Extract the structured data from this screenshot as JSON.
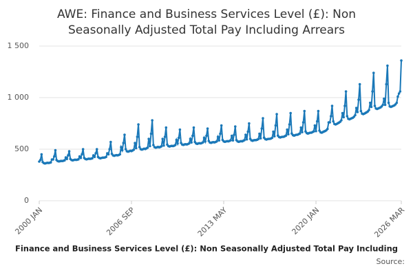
{
  "chart_data": {
    "type": "line",
    "title": [
      "AWE: Finance and Business Services Level (£): Non",
      "Seasonally Adjusted Total Pay Including Arrears"
    ],
    "categories": [
      "2000 JAN",
      null,
      null,
      null,
      null,
      null,
      null,
      null,
      null,
      null,
      null,
      null,
      null,
      null,
      null,
      null,
      null,
      null,
      null,
      null,
      null,
      null,
      null,
      null,
      null,
      null,
      null,
      null,
      null,
      null,
      null,
      null,
      null,
      null,
      null,
      null,
      null,
      null,
      null,
      null,
      null,
      null,
      null,
      null,
      null,
      null,
      null,
      null,
      null,
      null,
      null,
      null,
      null,
      null,
      null,
      null,
      null,
      null,
      null,
      null,
      null,
      null,
      null,
      null,
      null,
      null,
      null,
      null,
      null,
      null,
      null,
      null,
      null,
      null,
      null,
      null,
      null,
      null,
      null,
      null,
      "2006 SEP",
      null,
      null,
      null,
      null,
      null,
      null,
      null,
      null,
      null,
      null,
      null,
      null,
      null,
      null,
      null,
      null,
      null,
      null,
      null,
      null,
      null,
      null,
      null,
      null,
      null,
      null,
      null,
      null,
      null,
      null,
      null,
      null,
      null,
      null,
      null,
      null,
      null,
      null,
      null,
      null,
      null,
      null,
      null,
      null,
      null,
      null,
      null,
      null,
      null,
      null,
      null,
      null,
      null,
      null,
      null,
      null,
      null,
      null,
      null,
      null,
      null,
      null,
      null,
      null,
      null,
      null,
      null,
      null,
      null,
      null,
      null,
      null,
      null,
      null,
      null,
      null,
      null,
      null,
      null,
      "2013 MAY",
      null,
      null,
      null,
      null,
      null,
      null,
      null,
      null,
      null,
      null,
      null,
      null,
      null,
      null,
      null,
      null,
      null,
      null,
      null,
      null,
      null,
      null,
      null,
      null,
      null,
      null,
      null,
      null,
      null,
      null,
      null,
      null,
      null,
      null,
      null,
      null,
      null,
      null,
      null,
      null,
      null,
      null,
      null,
      null,
      null,
      null,
      null,
      null,
      null,
      null,
      null,
      null,
      null,
      null,
      null,
      null,
      null,
      null,
      null,
      null,
      null,
      null,
      null,
      null,
      null,
      null,
      null,
      null,
      null,
      null,
      null,
      null,
      null,
      null,
      null,
      null,
      null,
      null,
      null,
      "2020 JAN",
      null,
      null,
      null,
      null,
      null,
      null,
      null,
      null,
      null,
      null,
      null,
      null,
      null,
      null,
      null,
      null,
      null,
      null,
      null,
      null,
      null,
      null,
      null,
      null,
      null,
      null,
      null,
      null,
      null,
      null,
      null,
      null,
      null,
      null,
      null,
      null,
      null,
      null,
      null,
      null,
      null,
      null,
      null,
      null,
      null,
      null,
      null,
      null,
      null,
      null,
      null,
      null,
      null,
      null,
      null,
      null,
      null,
      null,
      null,
      null,
      null,
      null,
      null,
      null,
      null,
      null,
      null,
      null,
      null,
      null,
      null,
      null,
      null,
      "2026 MAR"
    ],
    "series": [
      {
        "name": "Finance and Business Services Level (£): Non Seasonally Adjusted Total Pay Including",
        "color": "#1a78b8",
        "values": [
          380,
          395,
          450,
          375,
          365,
          362,
          365,
          368,
          366,
          368,
          372,
          400,
          400,
          430,
          490,
          395,
          385,
          382,
          384,
          386,
          385,
          388,
          392,
          420,
          405,
          440,
          480,
          405,
          395,
          392,
          395,
          398,
          396,
          398,
          402,
          430,
          415,
          450,
          500,
          415,
          405,
          402,
          405,
          408,
          406,
          408,
          412,
          440,
          425,
          460,
          500,
          425,
          415,
          412,
          415,
          418,
          418,
          420,
          425,
          460,
          450,
          500,
          570,
          455,
          440,
          436,
          440,
          442,
          440,
          444,
          450,
          520,
          490,
          560,
          640,
          500,
          480,
          476,
          480,
          485,
          482,
          488,
          495,
          560,
          510,
          620,
          740,
          520,
          500,
          496,
          500,
          505,
          502,
          508,
          515,
          600,
          530,
          650,
          780,
          540,
          520,
          515,
          518,
          522,
          518,
          522,
          528,
          600,
          535,
          620,
          710,
          545,
          530,
          526,
          530,
          532,
          530,
          534,
          540,
          590,
          555,
          610,
          690,
          560,
          545,
          542,
          546,
          548,
          546,
          550,
          556,
          600,
          565,
          630,
          710,
          570,
          556,
          552,
          556,
          558,
          556,
          560,
          566,
          610,
          575,
          630,
          700,
          580,
          565,
          562,
          566,
          568,
          566,
          570,
          576,
          620,
          585,
          650,
          730,
          590,
          576,
          572,
          575,
          578,
          576,
          580,
          586,
          630,
          585,
          640,
          720,
          588,
          576,
          572,
          575,
          578,
          576,
          582,
          588,
          640,
          595,
          670,
          750,
          600,
          586,
          582,
          586,
          588,
          588,
          592,
          598,
          650,
          605,
          700,
          800,
          612,
          598,
          594,
          598,
          600,
          600,
          604,
          610,
          670,
          625,
          730,
          840,
          632,
          618,
          614,
          618,
          620,
          620,
          626,
          632,
          690,
          645,
          740,
          850,
          652,
          636,
          632,
          636,
          640,
          640,
          646,
          652,
          710,
          665,
          760,
          870,
          672,
          656,
          652,
          656,
          660,
          660,
          666,
          672,
          730,
          675,
          770,
          870,
          680,
          664,
          660,
          666,
          672,
          676,
          684,
          696,
          760,
          760,
          820,
          920,
          770,
          745,
          740,
          745,
          752,
          758,
          766,
          780,
          850,
          810,
          920,
          1060,
          820,
          795,
          790,
          795,
          800,
          805,
          815,
          830,
          900,
          860,
          980,
          1130,
          870,
          845,
          840,
          845,
          852,
          858,
          866,
          880,
          950,
          910,
          1060,
          1240,
          920,
          895,
          890,
          895,
          900,
          905,
          915,
          930,
          990,
          930,
          1130,
          1310,
          950,
          915,
          910,
          915,
          920,
          925,
          935,
          950,
          1010,
          1040,
          1060,
          1360
        ]
      }
    ],
    "ylim": [
      0,
      1500
    ],
    "yticks": [
      0,
      500,
      {
        "value": 1000,
        "label": "1 000"
      },
      {
        "value": 1500,
        "label": "1 500"
      }
    ],
    "grid": true,
    "source": "Source:"
  }
}
